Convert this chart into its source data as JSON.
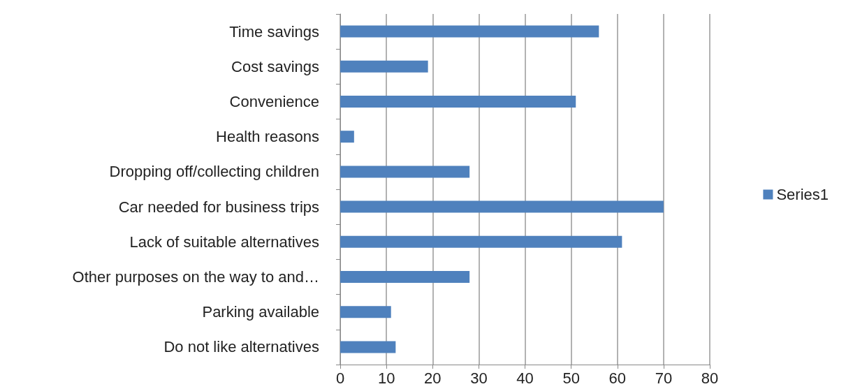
{
  "chart_data": {
    "type": "bar",
    "orientation": "horizontal",
    "categories": [
      "Time savings",
      "Cost savings",
      "Convenience",
      "Health reasons",
      "Dropping off/collecting children",
      "Car needed for business trips",
      "Lack of suitable alternatives",
      "Other purposes on the way to and…",
      "Parking available",
      "Do not like alternatives"
    ],
    "series": [
      {
        "name": "Series1",
        "color": "#4f81bd",
        "values": [
          56,
          19,
          51,
          3,
          28,
          70,
          61,
          28,
          11,
          12
        ]
      }
    ],
    "xlim": [
      0,
      80
    ],
    "xticks": [
      0,
      10,
      20,
      30,
      40,
      50,
      60,
      70,
      80
    ],
    "grid": "x",
    "legend": "right"
  }
}
